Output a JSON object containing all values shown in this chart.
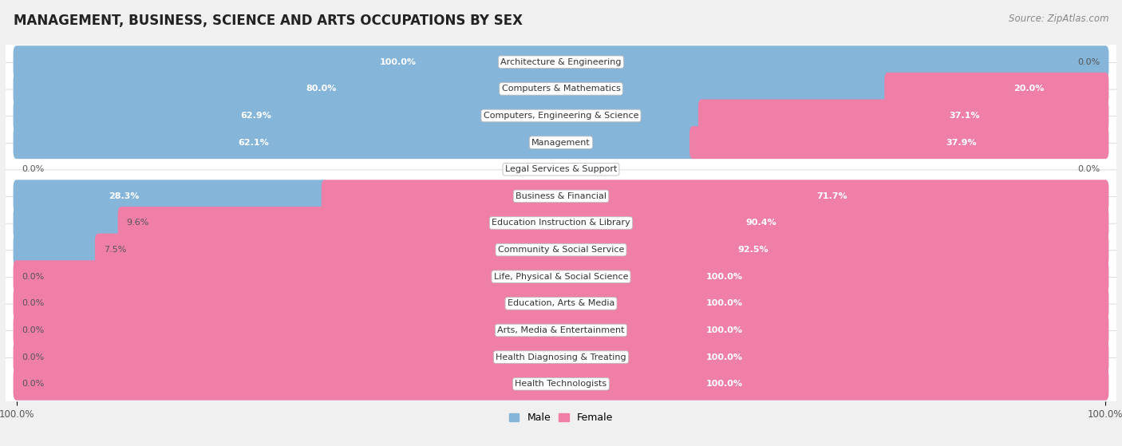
{
  "title": "MANAGEMENT, BUSINESS, SCIENCE AND ARTS OCCUPATIONS BY SEX",
  "source": "Source: ZipAtlas.com",
  "categories": [
    "Architecture & Engineering",
    "Computers & Mathematics",
    "Computers, Engineering & Science",
    "Management",
    "Legal Services & Support",
    "Business & Financial",
    "Education Instruction & Library",
    "Community & Social Service",
    "Life, Physical & Social Science",
    "Education, Arts & Media",
    "Arts, Media & Entertainment",
    "Health Diagnosing & Treating",
    "Health Technologists"
  ],
  "male_values": [
    100.0,
    80.0,
    62.9,
    62.1,
    0.0,
    28.3,
    9.6,
    7.5,
    0.0,
    0.0,
    0.0,
    0.0,
    0.0
  ],
  "female_values": [
    0.0,
    20.0,
    37.1,
    37.9,
    0.0,
    71.7,
    90.4,
    92.5,
    100.0,
    100.0,
    100.0,
    100.0,
    100.0
  ],
  "male_color": "#85b5d9",
  "female_color": "#f07fa8",
  "male_label": "Male",
  "female_label": "Female",
  "bg_color": "#f0f0f0",
  "row_bg_color": "#ffffff",
  "title_fontsize": 12,
  "source_fontsize": 8.5,
  "label_fontsize": 8,
  "value_fontsize": 8,
  "tick_fontsize": 8.5
}
